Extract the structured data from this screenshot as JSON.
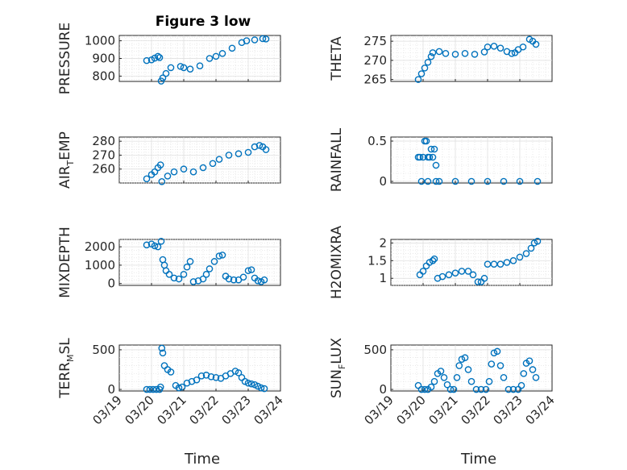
{
  "figure": {
    "title": "Figure 3 low",
    "marker_color": "#0072bd",
    "x_axis_label": "Time",
    "x_ticks": [
      "03/19",
      "03/20",
      "03/21",
      "03/22",
      "03/23",
      "03/24"
    ]
  },
  "chart_data": [
    {
      "type": "scatter",
      "ylabel": "PRESSURE",
      "title": "Figure 3 low",
      "xlim": [
        "03/19",
        "03/24"
      ],
      "ylim": [
        770,
        1030
      ],
      "y_ticks": [
        800,
        900,
        1000
      ],
      "grid": true,
      "x": [
        19.85,
        20.0,
        20.1,
        20.2,
        20.25,
        20.3,
        20.35,
        20.45,
        20.6,
        20.9,
        21.0,
        21.2,
        21.5,
        21.8,
        22.0,
        22.2,
        22.5,
        22.8,
        22.95,
        23.2,
        23.45,
        23.55
      ],
      "y": [
        888,
        892,
        902,
        912,
        905,
        772,
        790,
        815,
        848,
        855,
        848,
        840,
        858,
        900,
        912,
        928,
        958,
        990,
        1000,
        1005,
        1012,
        1010
      ]
    },
    {
      "type": "scatter",
      "ylabel": "THETA",
      "xlim": [
        "03/19",
        "03/24"
      ],
      "ylim": [
        264.5,
        276.5
      ],
      "y_ticks": [
        265,
        270,
        275
      ],
      "grid": true,
      "x": [
        19.85,
        19.95,
        20.05,
        20.15,
        20.25,
        20.3,
        20.5,
        20.7,
        21.0,
        21.3,
        21.6,
        21.9,
        22.0,
        22.2,
        22.4,
        22.6,
        22.75,
        22.85,
        22.95,
        23.1,
        23.3,
        23.4,
        23.5
      ],
      "y": [
        265,
        266.5,
        268,
        269.5,
        271,
        272,
        272.3,
        271.8,
        271.6,
        271.8,
        271.6,
        272.2,
        273.5,
        273.7,
        273.2,
        272.3,
        271.8,
        272.0,
        272.8,
        273.5,
        275.5,
        275.0,
        274.2
      ]
    },
    {
      "type": "scatter",
      "ylabel": "AIR_TEMP",
      "xlim": [
        "03/19",
        "03/24"
      ],
      "ylim": [
        250,
        283
      ],
      "y_ticks": [
        260,
        270,
        280
      ],
      "grid": true,
      "x": [
        19.85,
        20.0,
        20.1,
        20.2,
        20.28,
        20.32,
        20.5,
        20.7,
        21.0,
        21.3,
        21.6,
        21.9,
        22.1,
        22.4,
        22.7,
        23.0,
        23.2,
        23.35,
        23.45,
        23.55
      ],
      "y": [
        253,
        256,
        258,
        261,
        263,
        251,
        255,
        258,
        260,
        258,
        261,
        264,
        267,
        270,
        271,
        272,
        276,
        277,
        276,
        274
      ]
    },
    {
      "type": "scatter",
      "ylabel": "RAINFALL",
      "xlim": [
        "03/19",
        "03/24"
      ],
      "ylim": [
        -0.02,
        0.55
      ],
      "y_ticks": [
        0,
        0.5
      ],
      "grid": true,
      "x": [
        19.85,
        19.9,
        19.95,
        20.0,
        20.05,
        20.1,
        20.15,
        20.15,
        20.2,
        20.25,
        20.3,
        20.35,
        20.4,
        20.4,
        20.5,
        21.0,
        21.5,
        22.0,
        22.5,
        23.0,
        23.55
      ],
      "y": [
        0.3,
        0.3,
        0.0,
        0.3,
        0.5,
        0.5,
        0.3,
        0.0,
        0.3,
        0.4,
        0.3,
        0.4,
        0.2,
        0.0,
        0.0,
        0.0,
        0.0,
        0.0,
        0.0,
        0.0,
        0.0
      ]
    },
    {
      "type": "scatter",
      "ylabel": "MIXDEPTH",
      "xlim": [
        "03/19",
        "03/24"
      ],
      "ylim": [
        -100,
        2400
      ],
      "y_ticks": [
        0,
        1000,
        2000
      ],
      "grid": true,
      "x": [
        19.85,
        20.0,
        20.1,
        20.2,
        20.3,
        20.35,
        20.4,
        20.45,
        20.55,
        20.7,
        20.85,
        21.0,
        21.1,
        21.2,
        21.3,
        21.45,
        21.6,
        21.7,
        21.8,
        21.95,
        22.1,
        22.2,
        22.3,
        22.4,
        22.55,
        22.7,
        22.85,
        23.0,
        23.1,
        23.2,
        23.3,
        23.4,
        23.5
      ],
      "y": [
        2100,
        2150,
        2050,
        2000,
        2300,
        1300,
        1000,
        700,
        500,
        300,
        250,
        500,
        900,
        1200,
        100,
        150,
        250,
        500,
        800,
        1200,
        1500,
        1550,
        400,
        250,
        200,
        200,
        350,
        700,
        750,
        300,
        150,
        100,
        200
      ]
    },
    {
      "type": "scatter",
      "ylabel": "H2OMIXRA",
      "xlim": [
        "03/19",
        "03/24"
      ],
      "ylim": [
        0.8,
        2.1
      ],
      "y_ticks": [
        1,
        1.5,
        2
      ],
      "grid": true,
      "x": [
        19.9,
        20.0,
        20.1,
        20.2,
        20.3,
        20.35,
        20.45,
        20.6,
        20.8,
        21.0,
        21.2,
        21.4,
        21.55,
        21.7,
        21.8,
        21.9,
        22.0,
        22.2,
        22.4,
        22.6,
        22.8,
        23.0,
        23.2,
        23.35,
        23.45,
        23.55
      ],
      "y": [
        1.1,
        1.2,
        1.35,
        1.45,
        1.5,
        1.55,
        1.0,
        1.05,
        1.1,
        1.15,
        1.2,
        1.2,
        1.1,
        0.9,
        0.9,
        1.0,
        1.4,
        1.4,
        1.4,
        1.45,
        1.5,
        1.6,
        1.7,
        1.85,
        2.0,
        2.05
      ]
    },
    {
      "type": "scatter",
      "ylabel": "TERR_MSL",
      "xlim": [
        "03/19",
        "03/24"
      ],
      "ylim": [
        -20,
        560
      ],
      "y_ticks": [
        0,
        500
      ],
      "grid": true,
      "x": [
        19.85,
        19.95,
        20.05,
        20.15,
        20.25,
        20.28,
        20.32,
        20.35,
        20.4,
        20.5,
        20.6,
        20.75,
        20.85,
        20.95,
        21.1,
        21.25,
        21.4,
        21.55,
        21.7,
        21.85,
        22.0,
        22.15,
        22.3,
        22.45,
        22.6,
        22.7,
        22.8,
        22.9,
        23.0,
        23.1,
        23.2,
        23.3,
        23.4,
        23.5
      ],
      "y": [
        0,
        0,
        0,
        0,
        0,
        30,
        520,
        460,
        300,
        250,
        220,
        50,
        20,
        30,
        80,
        100,
        120,
        170,
        180,
        160,
        150,
        140,
        170,
        200,
        230,
        210,
        150,
        100,
        80,
        70,
        60,
        40,
        20,
        10
      ]
    },
    {
      "type": "scatter",
      "ylabel": "SUN_FLUX",
      "xlim": [
        "03/19",
        "03/24"
      ],
      "ylim": [
        -20,
        560
      ],
      "y_ticks": [
        0,
        500
      ],
      "grid": true,
      "x": [
        19.85,
        19.95,
        20.05,
        20.15,
        20.25,
        20.35,
        20.45,
        20.55,
        20.65,
        20.75,
        20.85,
        20.95,
        21.05,
        21.12,
        21.2,
        21.3,
        21.4,
        21.5,
        21.65,
        21.8,
        21.95,
        22.05,
        22.12,
        22.2,
        22.3,
        22.4,
        22.5,
        22.65,
        22.8,
        22.95,
        23.05,
        23.12,
        23.2,
        23.3,
        23.4,
        23.5
      ],
      "y": [
        50,
        0,
        0,
        0,
        30,
        100,
        200,
        230,
        150,
        60,
        0,
        0,
        150,
        300,
        380,
        400,
        250,
        100,
        0,
        0,
        0,
        100,
        320,
        460,
        480,
        300,
        150,
        0,
        0,
        0,
        50,
        200,
        330,
        360,
        250,
        150
      ]
    }
  ]
}
